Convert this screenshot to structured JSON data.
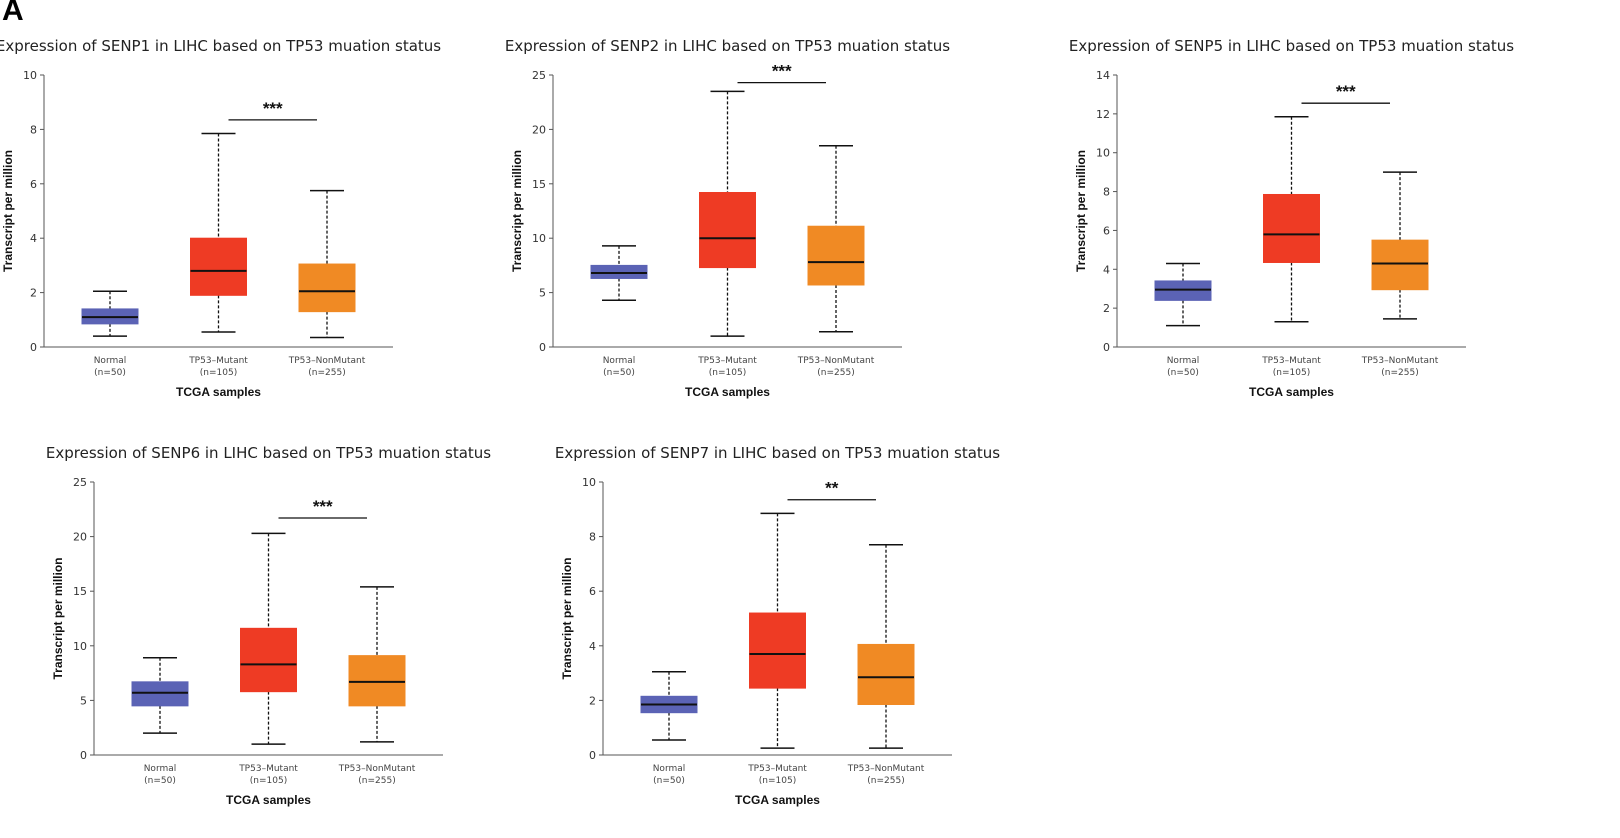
{
  "panel_label": "A",
  "chart_data": [
    {
      "type": "boxplot",
      "title": "Expression of SENP1 in LIHC based on TP53 muation status",
      "ylabel": "Transcript per million",
      "xlabel": "TCGA samples",
      "ylim": [
        0,
        10
      ],
      "yticks": [
        "0",
        "2",
        "4",
        "6",
        "8",
        "10"
      ],
      "categories": [
        {
          "name": "Normal",
          "n": "(n=50)"
        },
        {
          "name": "TP53–Mutant",
          "n": "(n=105)"
        },
        {
          "name": "TP53–NonMutant",
          "n": "(n=255)"
        }
      ],
      "boxes": [
        {
          "min": 0.4,
          "q1": 0.85,
          "median": 1.1,
          "q3": 1.4,
          "max": 2.05,
          "color": "#5b63b5"
        },
        {
          "min": 0.55,
          "q1": 1.9,
          "median": 2.8,
          "q3": 4.0,
          "max": 7.85,
          "color": "#ee3b24"
        },
        {
          "min": 0.35,
          "q1": 1.3,
          "median": 2.05,
          "q3": 3.05,
          "max": 5.75,
          "color": "#f08a24"
        }
      ],
      "significance": {
        "label": "***",
        "from": 1,
        "to": 2,
        "y": 8.35
      }
    },
    {
      "type": "boxplot",
      "title": "Expression of SENP2 in LIHC based on TP53 muation status",
      "ylabel": "Transcript per million",
      "xlabel": "TCGA samples",
      "ylim": [
        0,
        25
      ],
      "yticks": [
        "0",
        "5",
        "10",
        "15",
        "20",
        "25"
      ],
      "categories": [
        {
          "name": "Normal",
          "n": "(n=50)"
        },
        {
          "name": "TP53–Mutant",
          "n": "(n=105)"
        },
        {
          "name": "TP53–NonMutant",
          "n": "(n=255)"
        }
      ],
      "boxes": [
        {
          "min": 4.3,
          "q1": 6.3,
          "median": 6.8,
          "q3": 7.5,
          "max": 9.3,
          "color": "#5b63b5"
        },
        {
          "min": 1.0,
          "q1": 7.3,
          "median": 10.0,
          "q3": 14.2,
          "max": 23.5,
          "color": "#ee3b24"
        },
        {
          "min": 1.4,
          "q1": 5.7,
          "median": 7.8,
          "q3": 11.1,
          "max": 18.5,
          "color": "#f08a24"
        }
      ],
      "significance": {
        "label": "***",
        "from": 1,
        "to": 2,
        "y": 24.3
      }
    },
    {
      "type": "boxplot",
      "title": "Expression of SENP5 in LIHC based on TP53 muation status",
      "ylabel": "Transcript per million",
      "xlabel": "TCGA samples",
      "ylim": [
        0,
        14
      ],
      "yticks": [
        "0",
        "2",
        "4",
        "6",
        "8",
        "10",
        "12",
        "14"
      ],
      "categories": [
        {
          "name": "Normal",
          "n": "(n=50)"
        },
        {
          "name": "TP53–Mutant",
          "n": "(n=105)"
        },
        {
          "name": "TP53–NonMutant",
          "n": "(n=255)"
        }
      ],
      "boxes": [
        {
          "min": 1.1,
          "q1": 2.4,
          "median": 2.95,
          "q3": 3.4,
          "max": 4.3,
          "color": "#5b63b5"
        },
        {
          "min": 1.3,
          "q1": 4.35,
          "median": 5.8,
          "q3": 7.85,
          "max": 11.85,
          "color": "#ee3b24"
        },
        {
          "min": 1.45,
          "q1": 2.95,
          "median": 4.3,
          "q3": 5.5,
          "max": 9.0,
          "color": "#f08a24"
        }
      ],
      "significance": {
        "label": "***",
        "from": 1,
        "to": 2,
        "y": 12.55
      }
    },
    {
      "type": "boxplot",
      "title": "Expression of SENP6 in LIHC based on TP53 muation status",
      "ylabel": "Transcript per million",
      "xlabel": "TCGA samples",
      "ylim": [
        0,
        25
      ],
      "yticks": [
        "0",
        "5",
        "10",
        "15",
        "20",
        "25"
      ],
      "categories": [
        {
          "name": "Normal",
          "n": "(n=50)"
        },
        {
          "name": "TP53–Mutant",
          "n": "(n=105)"
        },
        {
          "name": "TP53–NonMutant",
          "n": "(n=255)"
        }
      ],
      "boxes": [
        {
          "min": 2.0,
          "q1": 4.5,
          "median": 5.7,
          "q3": 6.7,
          "max": 8.9,
          "color": "#5b63b5"
        },
        {
          "min": 1.0,
          "q1": 5.8,
          "median": 8.3,
          "q3": 11.6,
          "max": 20.3,
          "color": "#ee3b24"
        },
        {
          "min": 1.2,
          "q1": 4.5,
          "median": 6.7,
          "q3": 9.1,
          "max": 15.4,
          "color": "#f08a24"
        }
      ],
      "significance": {
        "label": "***",
        "from": 1,
        "to": 2,
        "y": 21.7
      }
    },
    {
      "type": "boxplot",
      "title": "Expression of SENP7 in LIHC based on TP53 muation status",
      "ylabel": "Transcript per million",
      "xlabel": "TCGA samples",
      "ylim": [
        0,
        10
      ],
      "yticks": [
        "0",
        "2",
        "4",
        "6",
        "8",
        "10"
      ],
      "categories": [
        {
          "name": "Normal",
          "n": "(n=50)"
        },
        {
          "name": "TP53–Mutant",
          "n": "(n=105)"
        },
        {
          "name": "TP53–NonMutant",
          "n": "(n=255)"
        }
      ],
      "boxes": [
        {
          "min": 0.55,
          "q1": 1.55,
          "median": 1.85,
          "q3": 2.15,
          "max": 3.05,
          "color": "#5b63b5"
        },
        {
          "min": 0.25,
          "q1": 2.45,
          "median": 3.7,
          "q3": 5.2,
          "max": 8.85,
          "color": "#ee3b24"
        },
        {
          "min": 0.25,
          "q1": 1.85,
          "median": 2.85,
          "q3": 4.05,
          "max": 7.7,
          "color": "#f08a24"
        }
      ],
      "significance": {
        "label": "**",
        "from": 1,
        "to": 2,
        "y": 9.35
      }
    }
  ]
}
